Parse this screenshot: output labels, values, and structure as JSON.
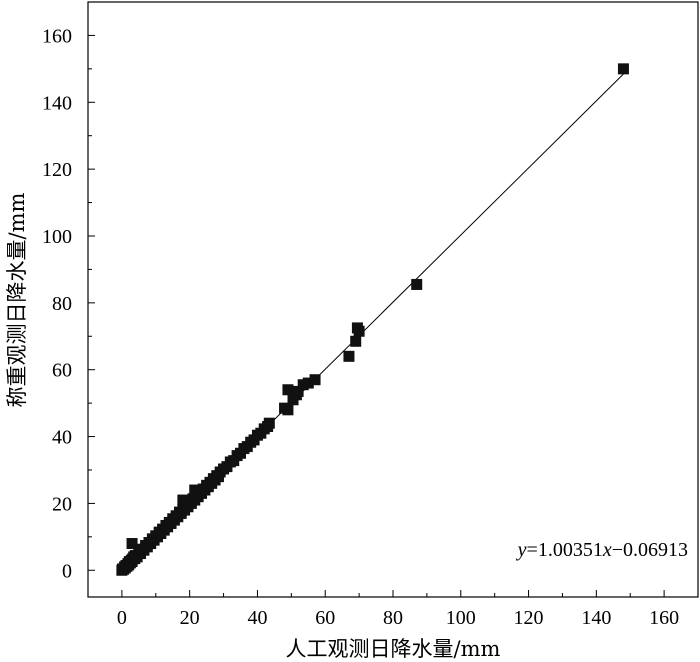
{
  "chart_data": {
    "type": "scatter",
    "title": "",
    "xlabel": "人工观测日降水量/mm",
    "ylabel": "称重观测日降水量/mm",
    "xlim": [
      -10,
      170
    ],
    "ylim": [
      -8,
      170
    ],
    "xticks": [
      0,
      20,
      40,
      60,
      80,
      100,
      120,
      140,
      160
    ],
    "yticks": [
      0,
      20,
      40,
      60,
      80,
      100,
      120,
      140,
      160
    ],
    "minor_ticks": true,
    "grid": false,
    "series": [
      {
        "marker": "square",
        "color": "#111111",
        "points": [
          [
            0,
            0
          ],
          [
            0.2,
            0.4
          ],
          [
            0.5,
            0.3
          ],
          [
            0.8,
            1.0
          ],
          [
            1.0,
            0.7
          ],
          [
            1.2,
            1.4
          ],
          [
            1.5,
            1.2
          ],
          [
            1.8,
            2.0
          ],
          [
            2.0,
            1.6
          ],
          [
            2.2,
            2.6
          ],
          [
            2.5,
            2.2
          ],
          [
            2.8,
            3.0
          ],
          [
            3.0,
            2.6
          ],
          [
            3.2,
            3.4
          ],
          [
            3.5,
            4.0
          ],
          [
            3.0,
            8.0
          ],
          [
            3.8,
            3.5
          ],
          [
            4.0,
            4.4
          ],
          [
            4.5,
            4.0
          ],
          [
            5.0,
            5.3
          ],
          [
            5.5,
            5.0
          ],
          [
            6.0,
            6.3
          ],
          [
            6.5,
            6.0
          ],
          [
            7.0,
            7.4
          ],
          [
            7.5,
            7.0
          ],
          [
            8.0,
            8.3
          ],
          [
            8.5,
            8.0
          ],
          [
            9.0,
            9.4
          ],
          [
            9.5,
            9.0
          ],
          [
            10.0,
            10.3
          ],
          [
            10.5,
            10.0
          ],
          [
            11.0,
            11.4
          ],
          [
            11.5,
            11.0
          ],
          [
            12.0,
            12.3
          ],
          [
            12.5,
            12.0
          ],
          [
            13.0,
            13.4
          ],
          [
            13.5,
            13.0
          ],
          [
            14.0,
            14.3
          ],
          [
            14.5,
            14.0
          ],
          [
            15.0,
            15.4
          ],
          [
            15.5,
            15.0
          ],
          [
            16.0,
            16.3
          ],
          [
            16.5,
            16.0
          ],
          [
            17.0,
            17.4
          ],
          [
            17.5,
            17.0
          ],
          [
            18.0,
            18.3
          ],
          [
            18.0,
            21.0
          ],
          [
            18.5,
            18.0
          ],
          [
            19.0,
            19.4
          ],
          [
            19.5,
            19.0
          ],
          [
            20.0,
            20.3
          ],
          [
            20.5,
            20.0
          ],
          [
            21.0,
            21.4
          ],
          [
            21.5,
            21.0
          ],
          [
            22.0,
            22.3
          ],
          [
            21.5,
            24.0
          ],
          [
            22.5,
            22.0
          ],
          [
            23.0,
            23.4
          ],
          [
            23.5,
            23.0
          ],
          [
            24.0,
            24.3
          ],
          [
            24.5,
            24.0
          ],
          [
            25.0,
            25.4
          ],
          [
            25.5,
            25.0
          ],
          [
            26.0,
            26.3
          ],
          [
            26.5,
            26.0
          ],
          [
            27.0,
            27.4
          ],
          [
            27.5,
            27.0
          ],
          [
            28.0,
            28.3
          ],
          [
            28.5,
            28.0
          ],
          [
            29.0,
            29.4
          ],
          [
            30.0,
            30.3
          ],
          [
            31.0,
            31.0
          ],
          [
            32.0,
            32.4
          ],
          [
            33.0,
            32.8
          ],
          [
            34.0,
            34.3
          ],
          [
            35.0,
            35.0
          ],
          [
            36.0,
            36.4
          ],
          [
            37.0,
            37.0
          ],
          [
            38.0,
            38.3
          ],
          [
            39.0,
            39.0
          ],
          [
            40.0,
            40.4
          ],
          [
            41.0,
            41.0
          ],
          [
            42.0,
            42.3
          ],
          [
            43.0,
            43.0
          ],
          [
            43.5,
            44.0
          ],
          [
            48.0,
            48.5
          ],
          [
            49.0,
            48.0
          ],
          [
            49.0,
            54.0
          ],
          [
            50.5,
            51.0
          ],
          [
            51.5,
            52.5
          ],
          [
            52.0,
            53.5
          ],
          [
            53.5,
            55.5
          ],
          [
            55.0,
            56.0
          ],
          [
            57.0,
            57.0
          ],
          [
            67.0,
            64.0
          ],
          [
            69.0,
            68.5
          ],
          [
            69.5,
            72.5
          ],
          [
            70.0,
            71.5
          ],
          [
            87.0,
            85.5
          ],
          [
            148.0,
            150.0
          ]
        ]
      }
    ],
    "fit_line": {
      "slope": 1.00351,
      "intercept": -0.06913,
      "x_range": [
        0,
        148
      ],
      "label": "y=1.00351x−0.06913"
    }
  }
}
